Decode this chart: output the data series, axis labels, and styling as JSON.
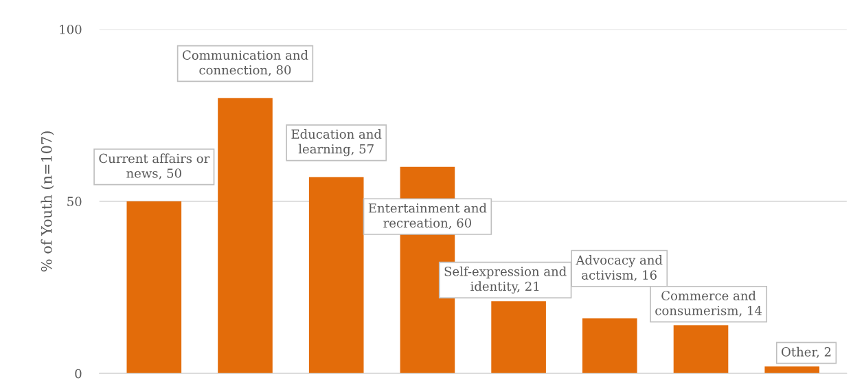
{
  "chart_data": {
    "type": "bar",
    "ylabel": "% of Youth (n=107)",
    "categories": [
      null,
      null,
      null,
      null,
      null,
      null,
      null,
      null
    ],
    "values": [
      50,
      80,
      57,
      60,
      21,
      16,
      14,
      2
    ],
    "value_labels": [
      "Current affairs or\nnews, 50",
      "Communication and\nconnection, 80",
      "Education and\nlearning, 57",
      "Entertainment and\nrecreation, 60",
      "Self-expression and\nidentity, 21",
      "Advocacy and\nactivism, 16",
      "Commerce and\nconsumerism, 14",
      "Other, 2"
    ],
    "color": "#e36c0a",
    "ylim": [
      0,
      100
    ],
    "yticks": [
      0,
      50,
      100
    ],
    "grid": "y",
    "tick_labels": "y"
  }
}
